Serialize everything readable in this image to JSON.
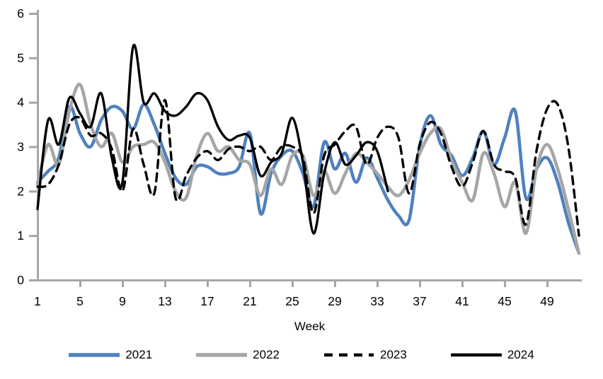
{
  "chart_data": {
    "type": "line",
    "title": "",
    "xlabel": "Week",
    "ylabel": "",
    "grid": false,
    "smooth": true,
    "legend_position": "bottom",
    "axis_color": "#a6a6a6",
    "text_color": "#000000",
    "xlim": [
      1,
      52
    ],
    "ylim": [
      0,
      6
    ],
    "x_ticks": [
      1,
      5,
      9,
      13,
      17,
      21,
      25,
      29,
      33,
      37,
      41,
      45,
      49
    ],
    "y_ticks": [
      0,
      1,
      2,
      3,
      4,
      5,
      6
    ],
    "x": [
      1,
      2,
      3,
      4,
      5,
      6,
      7,
      8,
      9,
      10,
      11,
      12,
      13,
      14,
      15,
      16,
      17,
      18,
      19,
      20,
      21,
      22,
      23,
      24,
      25,
      26,
      27,
      28,
      29,
      30,
      31,
      32,
      33,
      34,
      35,
      36,
      37,
      38,
      39,
      40,
      41,
      42,
      43,
      44,
      45,
      46,
      47,
      48,
      49,
      50,
      51,
      52
    ],
    "series": [
      {
        "name": "2021",
        "color": "#4f81bd",
        "style": "solid",
        "line_width": 4.5,
        "values": [
          2.2,
          2.45,
          2.75,
          3.9,
          3.3,
          3.0,
          3.6,
          3.9,
          3.8,
          3.4,
          3.95,
          3.5,
          2.85,
          2.3,
          2.15,
          2.55,
          2.55,
          2.4,
          2.4,
          2.55,
          3.3,
          1.5,
          2.4,
          2.8,
          2.9,
          2.4,
          1.65,
          3.1,
          2.5,
          2.85,
          2.2,
          2.75,
          2.3,
          1.8,
          1.45,
          1.35,
          3.0,
          3.7,
          3.05,
          2.8,
          2.35,
          2.75,
          3.35,
          2.6,
          3.2,
          3.8,
          1.85,
          2.5,
          2.75,
          2.2,
          1.3,
          0.6
        ]
      },
      {
        "name": "2022",
        "color": "#a6a6a6",
        "style": "solid",
        "line_width": 4.5,
        "values": [
          2.15,
          3.05,
          2.6,
          3.8,
          4.4,
          3.5,
          3.0,
          3.3,
          2.65,
          3.0,
          3.05,
          3.1,
          2.65,
          2.0,
          1.85,
          2.8,
          3.3,
          2.9,
          3.0,
          2.7,
          2.6,
          1.9,
          2.5,
          2.15,
          2.8,
          2.8,
          1.9,
          2.45,
          1.95,
          2.4,
          2.85,
          2.65,
          2.4,
          2.1,
          1.9,
          2.25,
          2.85,
          3.3,
          3.4,
          2.7,
          2.2,
          1.8,
          2.85,
          2.4,
          1.65,
          2.2,
          1.05,
          2.5,
          3.05,
          2.5,
          1.6,
          0.6
        ]
      },
      {
        "name": "2023",
        "color": "#000000",
        "style": "dashed",
        "line_width": 3.4,
        "values": [
          2.1,
          2.15,
          2.6,
          3.5,
          3.65,
          3.25,
          3.3,
          2.95,
          2.0,
          3.4,
          2.6,
          1.95,
          4.05,
          1.85,
          2.35,
          2.75,
          2.9,
          2.7,
          2.95,
          3.0,
          2.9,
          3.0,
          2.7,
          3.0,
          3.0,
          2.75,
          1.5,
          2.8,
          3.05,
          3.35,
          3.45,
          2.6,
          3.2,
          3.45,
          3.2,
          1.95,
          3.05,
          3.55,
          3.3,
          2.55,
          2.1,
          2.65,
          3.35,
          2.6,
          2.45,
          2.3,
          1.25,
          2.9,
          3.85,
          3.95,
          3.0,
          1.0
        ]
      },
      {
        "name": "2024",
        "color": "#000000",
        "style": "solid",
        "line_width": 3.4,
        "values": [
          1.6,
          3.6,
          3.05,
          4.1,
          3.75,
          3.45,
          4.2,
          2.75,
          2.2,
          5.25,
          4.0,
          4.2,
          3.8,
          3.7,
          3.9,
          4.2,
          4.05,
          3.45,
          3.15,
          3.25,
          3.2,
          2.35,
          2.65,
          2.85,
          3.65,
          2.65,
          1.05,
          2.4,
          3.1,
          2.6,
          2.8,
          3.1,
          2.9,
          2.0
        ]
      }
    ]
  }
}
